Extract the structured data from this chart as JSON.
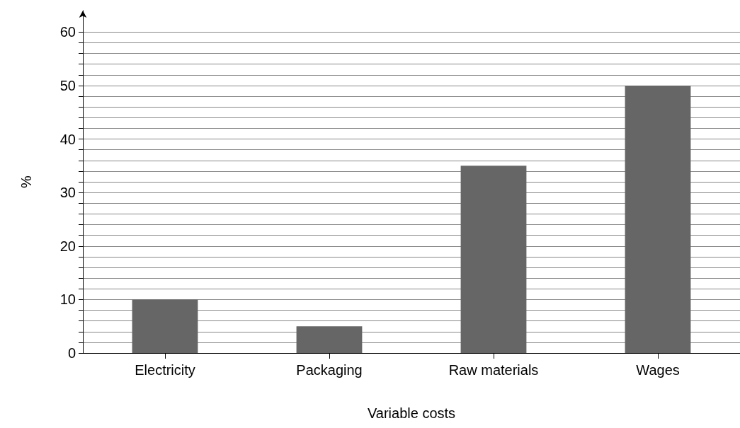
{
  "chart_data": {
    "type": "bar",
    "xlabel": "Variable costs",
    "ylabel": "%",
    "categories": [
      "Electricity",
      "Packaging",
      "Raw materials",
      "Wages"
    ],
    "values": [
      10,
      5,
      35,
      50
    ],
    "color": "#666666",
    "ylim": [
      0,
      64
    ],
    "yticks": [
      0,
      {
        "value": 2,
        "label": null
      },
      {
        "value": 4,
        "label": null
      },
      {
        "value": 6,
        "label": null
      },
      {
        "value": 8,
        "label": null
      },
      10,
      {
        "value": 12,
        "label": null
      },
      {
        "value": 14,
        "label": null
      },
      {
        "value": 16,
        "label": null
      },
      {
        "value": 18,
        "label": null
      },
      20,
      {
        "value": 22,
        "label": null
      },
      {
        "value": 24,
        "label": null
      },
      {
        "value": 26,
        "label": null
      },
      {
        "value": 28,
        "label": null
      },
      30,
      {
        "value": 32,
        "label": null
      },
      {
        "value": 34,
        "label": null
      },
      {
        "value": 36,
        "label": null
      },
      {
        "value": 38,
        "label": null
      },
      40,
      {
        "value": 42,
        "label": null
      },
      {
        "value": 44,
        "label": null
      },
      {
        "value": 46,
        "label": null
      },
      {
        "value": 48,
        "label": null
      },
      50,
      {
        "value": 52,
        "label": null
      },
      {
        "value": 54,
        "label": null
      },
      {
        "value": 56,
        "label": null
      },
      {
        "value": 58,
        "label": null
      },
      60
    ],
    "grid": "y"
  }
}
